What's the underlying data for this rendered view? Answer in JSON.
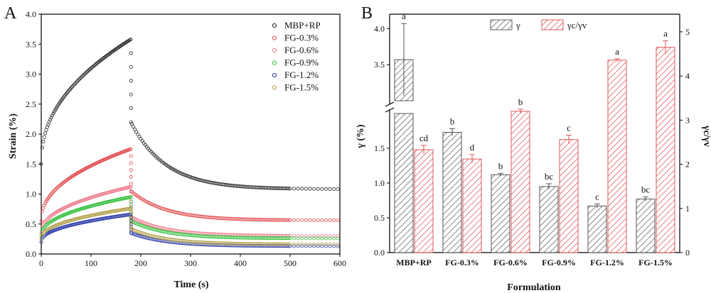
{
  "chart_data": [
    {
      "panel": "A",
      "type": "scatter",
      "xlabel": "Time (s)",
      "ylabel": "Strain (%)",
      "xlim": [
        0,
        600
      ],
      "ylim": [
        0,
        4.0
      ],
      "x_ticks": [
        0,
        100,
        200,
        300,
        400,
        500,
        600
      ],
      "y_ticks": [
        0.0,
        0.5,
        1.0,
        1.5,
        2.0,
        2.5,
        3.0,
        3.5,
        4.0
      ],
      "load_end_time": 180,
      "legend_position": "top-right",
      "series": [
        {
          "name": "MBP+RP",
          "color": "#222222",
          "start": 1.5,
          "peak": 3.58,
          "drop": 2.2,
          "end": 1.08
        },
        {
          "name": "FG-0.3%",
          "color": "#e0484a",
          "start": 0.55,
          "peak": 1.75,
          "drop": 1.05,
          "end": 0.56
        },
        {
          "name": "FG-0.6%",
          "color": "#ec7a8c",
          "start": 0.35,
          "peak": 1.12,
          "drop": 0.62,
          "end": 0.3
        },
        {
          "name": "FG-0.9%",
          "color": "#2fbf3a",
          "start": 0.3,
          "peak": 0.95,
          "drop": 0.55,
          "end": 0.26
        },
        {
          "name": "FG-1.2%",
          "color": "#2a3aa8",
          "start": 0.2,
          "peak": 0.66,
          "drop": 0.35,
          "end": 0.13
        },
        {
          "name": "FG-1.5%",
          "color": "#b3a04a",
          "start": 0.25,
          "peak": 0.76,
          "drop": 0.42,
          "end": 0.16
        }
      ]
    },
    {
      "panel": "B",
      "type": "bar",
      "xlabel": "Formulation",
      "ylabel_left": "γ (%)",
      "ylabel_right": "γc/γv",
      "legend": [
        {
          "name": "γ",
          "color": "#555555"
        },
        {
          "name": "γc/γv",
          "color": "#e0484a"
        }
      ],
      "categories": [
        "MBP+RP",
        "FG-0.3%",
        "FG-0.6%",
        "FG-0.9%",
        "FG-1.2%",
        "FG-1.5%"
      ],
      "left_axis_lower": {
        "ylim": [
          0,
          2.0
        ],
        "ticks": [
          0.0,
          0.5,
          1.0,
          1.5
        ]
      },
      "left_axis_upper": {
        "ylim": [
          3.0,
          4.2
        ],
        "ticks": [
          3.5,
          4.0
        ]
      },
      "right_axis": {
        "ylim": [
          0,
          5.4
        ],
        "ticks": [
          0,
          1,
          2,
          3,
          4,
          5
        ]
      },
      "series": [
        {
          "name": "γ",
          "values": [
            3.57,
            1.73,
            1.12,
            0.95,
            0.67,
            0.77
          ],
          "errors": [
            0.5,
            0.05,
            0.02,
            0.04,
            0.03,
            0.03
          ],
          "labels": [
            "a",
            "b",
            "b",
            "bc",
            "c",
            "bc"
          ]
        },
        {
          "name": "γc/γv",
          "values": [
            2.33,
            2.12,
            3.2,
            2.56,
            4.36,
            4.65
          ],
          "errors": [
            0.1,
            0.1,
            0.05,
            0.1,
            0.03,
            0.15
          ],
          "labels": [
            "cd",
            "d",
            "b",
            "c",
            "a",
            "a"
          ]
        }
      ]
    }
  ]
}
